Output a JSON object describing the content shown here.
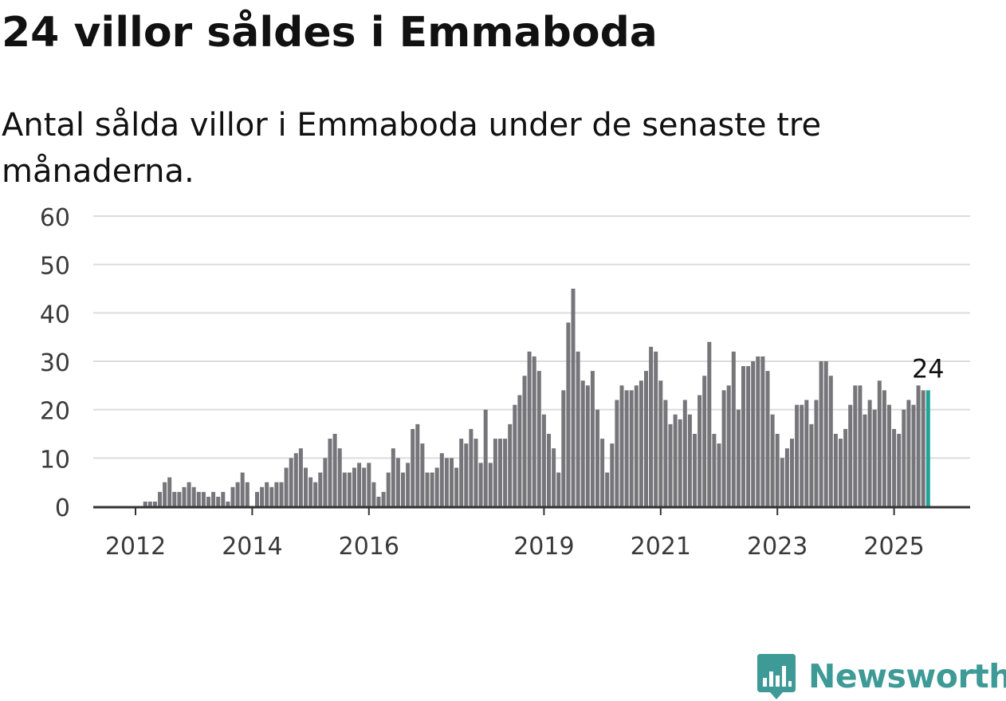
{
  "header": {
    "title": "24 villor såldes i Emmaboda",
    "subtitle": "Antal sålda villor i Emmaboda under de senaste tre månaderna."
  },
  "brand": {
    "name": "Newsworthy",
    "logo_icon": "bar-chart-speech-bubble-icon",
    "color": "#3e9a96"
  },
  "chart_data": {
    "type": "bar",
    "title": "24 villor såldes i Emmaboda",
    "subtitle": "Antal sålda villor i Emmaboda under de senaste tre månaderna.",
    "xlabel": "",
    "ylabel": "",
    "ylim": [
      0,
      60
    ],
    "yticks": [
      0,
      10,
      20,
      30,
      40,
      50,
      60
    ],
    "xticks": [
      {
        "label": "2012",
        "index": 0
      },
      {
        "label": "2014",
        "index": 24
      },
      {
        "label": "2016",
        "index": 48
      },
      {
        "label": "2019",
        "index": 84
      },
      {
        "label": "2021",
        "index": 108
      },
      {
        "label": "2023",
        "index": 132
      },
      {
        "label": "2025",
        "index": 156
      }
    ],
    "grid": true,
    "legend": "none",
    "highlight": {
      "index": 163,
      "value": 24,
      "label": "24",
      "color": "#1fa39a"
    },
    "bar_color": "#75757a",
    "start_period": "2012-01",
    "values": [
      0,
      0,
      1,
      1,
      1,
      3,
      5,
      6,
      3,
      3,
      4,
      5,
      4,
      3,
      3,
      2,
      3,
      2,
      3,
      1,
      4,
      5,
      7,
      5,
      0,
      3,
      4,
      5,
      4,
      5,
      5,
      8,
      10,
      11,
      12,
      8,
      6,
      5,
      7,
      10,
      14,
      15,
      12,
      7,
      7,
      8,
      9,
      8,
      9,
      5,
      2,
      3,
      7,
      12,
      10,
      7,
      9,
      16,
      17,
      13,
      7,
      7,
      8,
      11,
      10,
      10,
      8,
      14,
      13,
      16,
      14,
      9,
      20,
      9,
      14,
      14,
      14,
      17,
      21,
      23,
      27,
      32,
      31,
      28,
      19,
      15,
      12,
      7,
      24,
      38,
      45,
      32,
      26,
      25,
      28,
      20,
      14,
      7,
      13,
      22,
      25,
      24,
      24,
      25,
      26,
      28,
      33,
      32,
      26,
      22,
      17,
      19,
      18,
      22,
      19,
      15,
      23,
      27,
      34,
      15,
      13,
      24,
      25,
      32,
      20,
      29,
      29,
      30,
      31,
      31,
      28,
      19,
      15,
      10,
      12,
      14,
      21,
      21,
      22,
      17,
      22,
      30,
      30,
      27,
      15,
      14,
      16,
      21,
      25,
      25,
      19,
      22,
      20,
      26,
      24,
      21,
      16,
      15,
      20,
      22,
      21,
      25,
      24,
      24
    ]
  }
}
